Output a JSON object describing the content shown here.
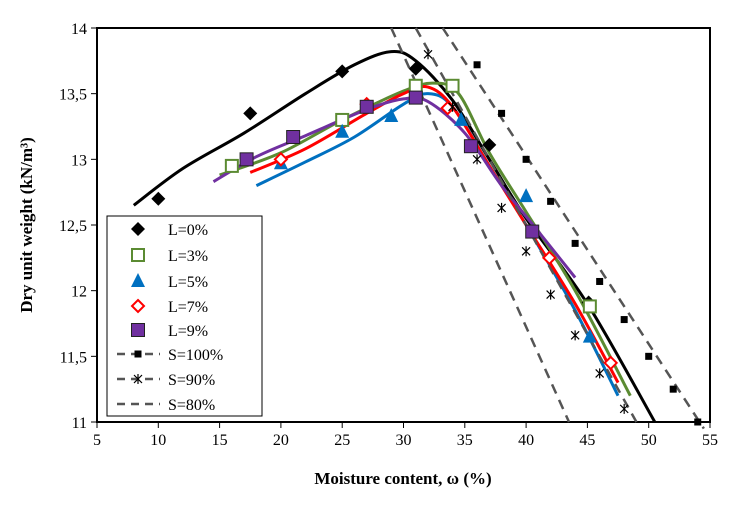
{
  "chart_data": {
    "type": "scatter",
    "title": "",
    "xlabel": "Moisture content, ω  (%)",
    "ylabel": "Dry unit weight  (kN/m³)",
    "xlim": [
      5,
      55
    ],
    "ylim": [
      11,
      14
    ],
    "x_ticks": [
      5,
      10,
      15,
      20,
      25,
      30,
      35,
      40,
      45,
      50,
      55
    ],
    "x_tick_labels": [
      "5",
      "10",
      "15",
      "20",
      "25",
      "30",
      "35",
      "40",
      "45",
      "50",
      "55"
    ],
    "y_ticks": [
      11,
      11.5,
      12,
      12.5,
      13,
      13.5,
      14
    ],
    "y_tick_labels": [
      "11",
      "11,5",
      "12",
      "12,5",
      "13",
      "13,5",
      "14"
    ],
    "grid": false,
    "legend_position": "bottom-left",
    "series": [
      {
        "name": "L=0%",
        "color": "#000000",
        "marker": "diamond-filled",
        "points": [
          [
            10,
            12.7
          ],
          [
            17.5,
            13.35
          ],
          [
            25,
            13.67
          ],
          [
            31,
            13.69
          ],
          [
            37,
            13.11
          ],
          [
            45.1,
            11.91
          ]
        ],
        "curve": [
          [
            8,
            12.65
          ],
          [
            12,
            12.93
          ],
          [
            17,
            13.2
          ],
          [
            22,
            13.5
          ],
          [
            26,
            13.72
          ],
          [
            29,
            13.82
          ],
          [
            31,
            13.75
          ],
          [
            34,
            13.45
          ],
          [
            37,
            13.0
          ],
          [
            40,
            12.55
          ],
          [
            45,
            11.9
          ],
          [
            50.5,
            11.0
          ]
        ]
      },
      {
        "name": "L=3%",
        "color": "#5B8B32",
        "marker": "square-open",
        "points": [
          [
            16,
            12.95
          ],
          [
            25,
            13.3
          ],
          [
            31,
            13.56
          ],
          [
            34,
            13.56
          ],
          [
            45.2,
            11.88
          ]
        ],
        "curve": [
          [
            15,
            12.88
          ],
          [
            20,
            13.05
          ],
          [
            25,
            13.3
          ],
          [
            30,
            13.52
          ],
          [
            32.5,
            13.58
          ],
          [
            34.5,
            13.5
          ],
          [
            37,
            13.05
          ],
          [
            40,
            12.6
          ],
          [
            44,
            12.0
          ],
          [
            48.5,
            11.2
          ]
        ]
      },
      {
        "name": "L=5%",
        "color": "#0070C0",
        "marker": "triangle-filled",
        "points": [
          [
            20,
            12.97
          ],
          [
            25,
            13.21
          ],
          [
            29,
            13.33
          ],
          [
            34.7,
            13.3
          ],
          [
            40,
            12.72
          ],
          [
            45.2,
            11.65
          ]
        ],
        "curve": [
          [
            18,
            12.8
          ],
          [
            22,
            12.98
          ],
          [
            26,
            13.17
          ],
          [
            30,
            13.42
          ],
          [
            32,
            13.5
          ],
          [
            34,
            13.4
          ],
          [
            37,
            12.95
          ],
          [
            40,
            12.5
          ],
          [
            44,
            11.85
          ],
          [
            47.5,
            11.2
          ]
        ]
      },
      {
        "name": "L=7%",
        "color": "#FF0000",
        "marker": "diamond-open",
        "points": [
          [
            20,
            13.0
          ],
          [
            27,
            13.42
          ],
          [
            33.6,
            13.39
          ],
          [
            41.9,
            12.25
          ],
          [
            46.9,
            11.45
          ]
        ],
        "curve": [
          [
            17.5,
            12.9
          ],
          [
            22,
            13.08
          ],
          [
            27,
            13.35
          ],
          [
            30,
            13.5
          ],
          [
            32,
            13.55
          ],
          [
            34,
            13.4
          ],
          [
            37,
            12.95
          ],
          [
            40,
            12.5
          ],
          [
            44,
            11.9
          ],
          [
            47.5,
            11.3
          ]
        ]
      },
      {
        "name": "L=9%",
        "color": "#7030A0",
        "marker": "square-filled",
        "points": [
          [
            17.2,
            13.0
          ],
          [
            21,
            13.17
          ],
          [
            27,
            13.4
          ],
          [
            31,
            13.47
          ],
          [
            35.5,
            13.1
          ],
          [
            40.5,
            12.45
          ]
        ],
        "curve": [
          [
            14.5,
            12.83
          ],
          [
            18,
            13.02
          ],
          [
            22,
            13.18
          ],
          [
            27,
            13.38
          ],
          [
            30,
            13.46
          ],
          [
            32,
            13.44
          ],
          [
            35,
            13.2
          ],
          [
            38,
            12.8
          ],
          [
            41,
            12.45
          ],
          [
            44,
            12.1
          ]
        ]
      },
      {
        "name": "S=100%",
        "color": "#555555",
        "marker": "small-square",
        "points": [
          [
            36,
            13.72
          ],
          [
            38,
            13.35
          ],
          [
            40,
            13.0
          ],
          [
            42,
            12.68
          ],
          [
            44,
            12.36
          ],
          [
            46,
            12.07
          ],
          [
            48,
            11.78
          ],
          [
            50,
            11.5
          ],
          [
            52,
            11.25
          ],
          [
            54,
            11.0
          ]
        ],
        "line": [
          [
            33.2,
            14
          ],
          [
            54.5,
            10.95
          ]
        ]
      },
      {
        "name": "S=90%",
        "color": "#555555",
        "marker": "asterisk",
        "points": [
          [
            32,
            13.8
          ],
          [
            34,
            13.4
          ],
          [
            36,
            13.0
          ],
          [
            38,
            12.63
          ],
          [
            40,
            12.3
          ],
          [
            42,
            11.97
          ],
          [
            44,
            11.66
          ],
          [
            46,
            11.37
          ],
          [
            48,
            11.1
          ]
        ],
        "line": [
          [
            31,
            14
          ],
          [
            49,
            11
          ]
        ]
      },
      {
        "name": "S=80%",
        "color": "#555555",
        "marker": "none",
        "points": [],
        "line": [
          [
            29,
            14
          ],
          [
            43.5,
            11
          ]
        ]
      }
    ]
  }
}
